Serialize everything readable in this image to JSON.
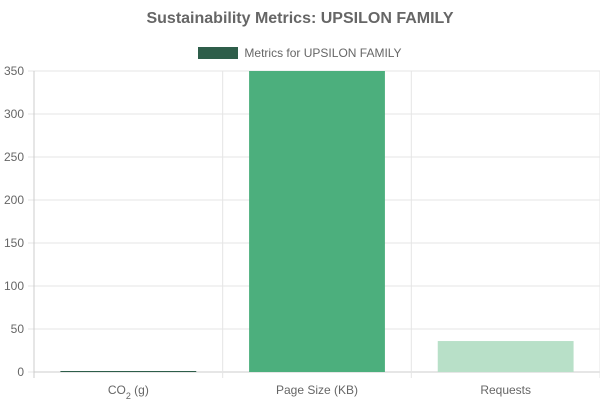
{
  "title": "Sustainability Metrics: UPSILON FAMILY",
  "legend": {
    "label": "Metrics for UPSILON FAMILY",
    "color": "#2e5e4a"
  },
  "chart_data": {
    "type": "bar",
    "title": "Sustainability Metrics: UPSILON FAMILY",
    "categories": [
      "CO2 (g)",
      "Page Size (KB)",
      "Requests"
    ],
    "series": [
      {
        "name": "Metrics for UPSILON FAMILY",
        "values": [
          0.5,
          350,
          36
        ]
      }
    ],
    "bar_colors": [
      "#2e5e4a",
      "#4caf7d",
      "#b8e0c8"
    ],
    "ylim": [
      0,
      350
    ],
    "yticks": [
      0,
      50,
      100,
      150,
      200,
      250,
      300,
      350
    ],
    "grid": true,
    "legend_position": "top-center"
  }
}
